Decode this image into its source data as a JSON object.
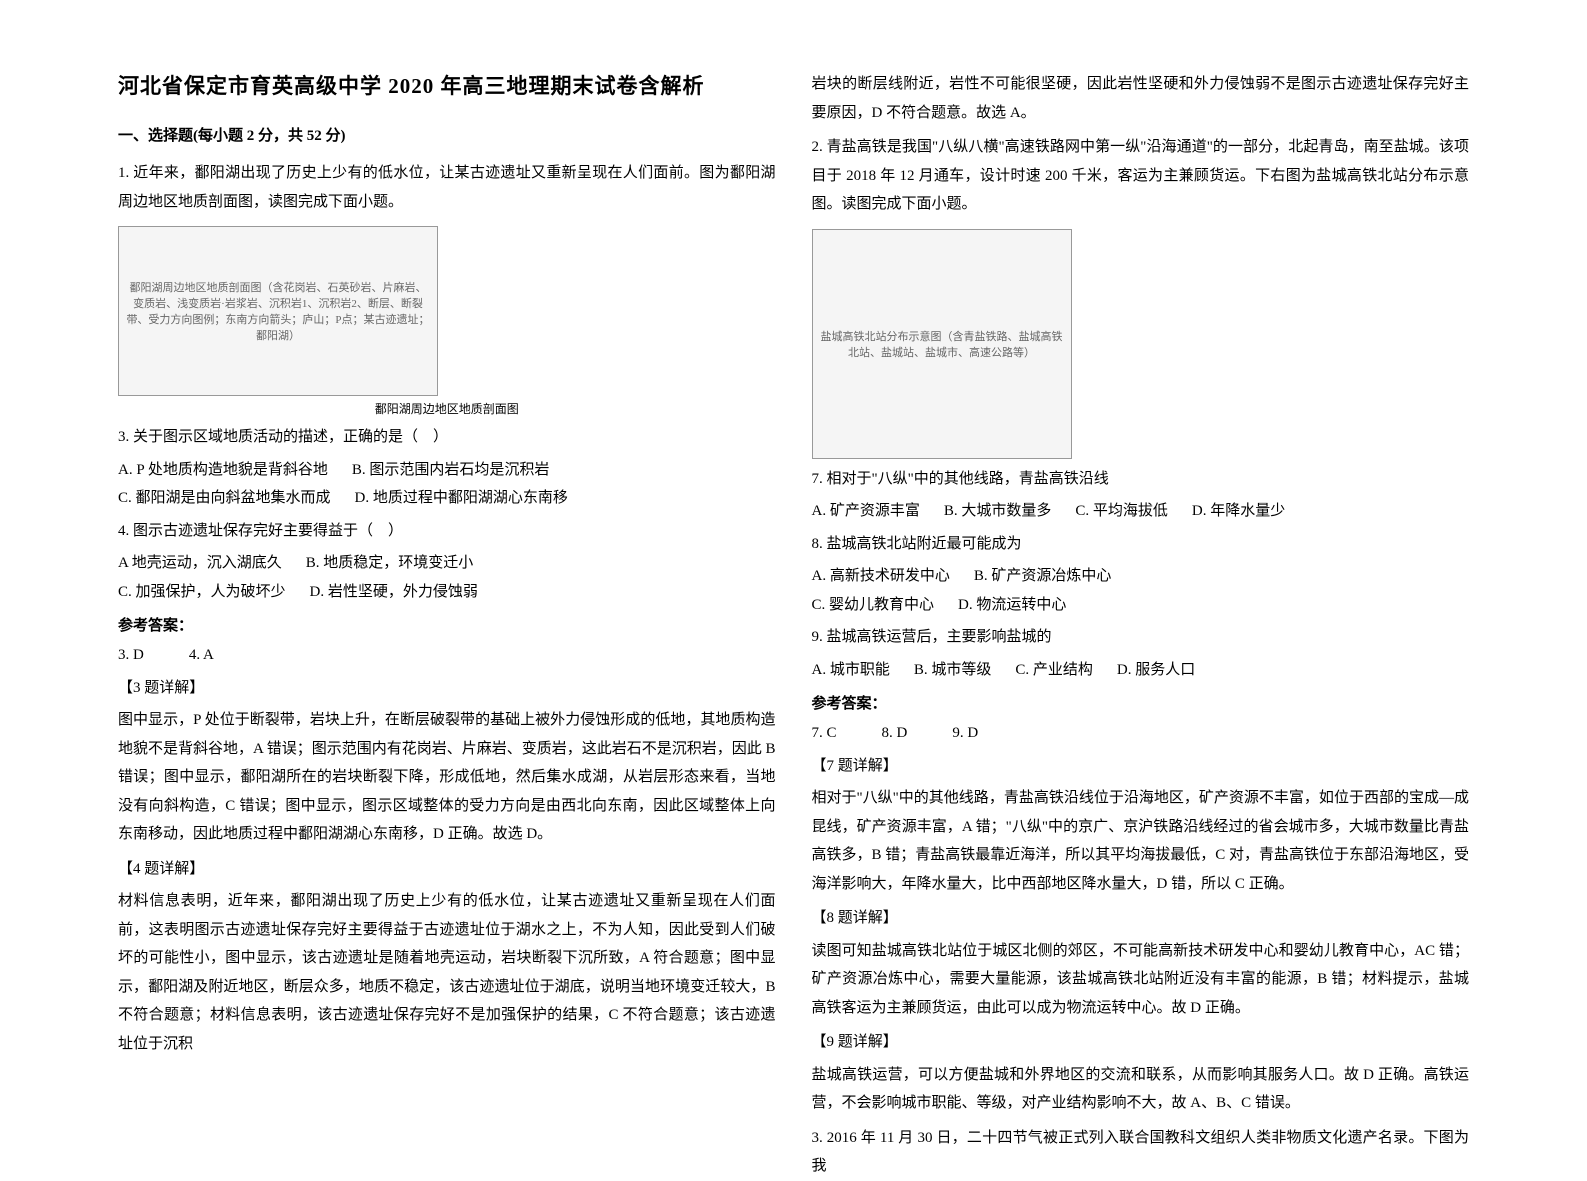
{
  "doc": {
    "title": "河北省保定市育英高级中学 2020 年高三地理期末试卷含解析",
    "section1_heading": "一、选择题(每小题 2 分，共 52 分)"
  },
  "q1": {
    "intro": "1. 近年来，鄱阳湖出现了历史上少有的低水位，让某古迹遗址又重新呈现在人们面前。图为鄱阳湖周边地区地质剖面图，读图完成下面小题。",
    "figure_desc": "鄱阳湖周边地区地质剖面图（含花岗岩、石英砂岩、片麻岩、变质岩、浅变质岩·岩浆岩、沉积岩1、沉积岩2、断层、断裂带、受力方向图例；东南方向箭头；庐山；P点；某古迹遗址；鄱阳湖）",
    "figure_caption": "鄱阳湖周边地区地质剖面图",
    "q3_stem": "3. 关于图示区域地质活动的描述，正确的是（　）",
    "q3_a": "A. P 处地质构造地貌是背斜谷地",
    "q3_b": "B. 图示范围内岩石均是沉积岩",
    "q3_c": "C. 鄱阳湖是由向斜盆地集水而成",
    "q3_d": "D. 地质过程中鄱阳湖湖心东南移",
    "q4_stem": "4. 图示古迹遗址保存完好主要得益于（　）",
    "q4_a": "A 地壳运动，沉入湖底久",
    "q4_b": "B. 地质稳定，环境变迁小",
    "q4_c": "C. 加强保护，人为破坏少",
    "q4_d": "D. 岩性坚硬，外力侵蚀弱",
    "answer_heading": "参考答案：",
    "answer_line": "3. D　　　4. A",
    "e3_heading": "【3 题详解】",
    "e3_body": "图中显示，P 处位于断裂带，岩块上升，在断层破裂带的基础上被外力侵蚀形成的低地，其地质构造地貌不是背斜谷地，A 错误；图示范围内有花岗岩、片麻岩、变质岩，这此岩石不是沉积岩，因此 B 错误；图中显示，鄱阳湖所在的岩块断裂下降，形成低地，然后集水成湖，从岩层形态来看，当地没有向斜构造，C 错误；图中显示，图示区域整体的受力方向是由西北向东南，因此区域整体上向东南移动，因此地质过程中鄱阳湖湖心东南移，D 正确。故选 D。",
    "e4_heading": "【4 题详解】",
    "e4_body": "材料信息表明，近年来，鄱阳湖出现了历史上少有的低水位，让某古迹遗址又重新呈现在人们面前，这表明图示古迹遗址保存完好主要得益于古迹遗址位于湖水之上，不为人知，因此受到人们破坏的可能性小，图中显示，该古迹遗址是随着地壳运动，岩块断裂下沉所致，A 符合题意；图中显示，鄱阳湖及附近地区，断层众多，地质不稳定，该古迹遗址位于湖底，说明当地环境变迁较大，B 不符合题意；材料信息表明，该古迹遗址保存完好不是加强保护的结果，C 不符合题意；该古迹遗址位于沉积",
    "e4_cont": "岩块的断层线附近，岩性不可能很坚硬，因此岩性坚硬和外力侵蚀弱不是图示古迹遗址保存完好主要原因，D 不符合题意。故选 A。"
  },
  "q2": {
    "intro": "2. 青盐高铁是我国\"八纵八横\"高速铁路网中第一纵\"沿海通道\"的一部分，北起青岛，南至盐城。该项目于 2018 年 12 月通车，设计时速 200 千米，客运为主兼顾货运。下右图为盐城高铁北站分布示意图。读图完成下面小题。",
    "figure_desc": "盐城高铁北站分布示意图（含青盐铁路、盐城高铁北站、盐城站、盐城市、高速公路等）",
    "q7_stem": "7. 相对于\"八纵\"中的其他线路，青盐高铁沿线",
    "q7_a": "A. 矿产资源丰富",
    "q7_b": "B. 大城市数量多",
    "q7_c": "C. 平均海拔低",
    "q7_d": "D. 年降水量少",
    "q8_stem": "8. 盐城高铁北站附近最可能成为",
    "q8_a": "A. 高新技术研发中心",
    "q8_b": "B. 矿产资源冶炼中心",
    "q8_c": "C. 婴幼儿教育中心",
    "q8_d": "D. 物流运转中心",
    "q9_stem": "9. 盐城高铁运营后，主要影响盐城的",
    "q9_a": "A. 城市职能",
    "q9_b": "B. 城市等级",
    "q9_c": "C. 产业结构",
    "q9_d": "D. 服务人口",
    "answer_heading": "参考答案：",
    "answer_line": "7. C　　　8. D　　　9. D",
    "e7_heading": "【7 题详解】",
    "e7_body": "相对于\"八纵\"中的其他线路，青盐高铁沿线位于沿海地区，矿产资源不丰富，如位于西部的宝成—成昆线，矿产资源丰富，A 错；\"八纵\"中的京广、京沪铁路沿线经过的省会城市多，大城市数量比青盐高铁多，B 错；青盐高铁最靠近海洋，所以其平均海拔最低，C 对，青盐高铁位于东部沿海地区，受海洋影响大，年降水量大，比中西部地区降水量大，D 错，所以 C 正确。",
    "e8_heading": "【8 题详解】",
    "e8_body": "读图可知盐城高铁北站位于城区北侧的郊区，不可能高新技术研发中心和婴幼儿教育中心，AC 错；矿产资源冶炼中心，需要大量能源，该盐城高铁北站附近没有丰富的能源，B 错；材料提示，盐城高铁客运为主兼顾货运，由此可以成为物流运转中心。故 D 正确。",
    "e9_heading": "【9 题详解】",
    "e9_body": "盐城高铁运营，可以方便盐城和外界地区的交流和联系，从而影响其服务人口。故 D 正确。高铁运营，不会影响城市职能、等级，对产业结构影响不大，故 A、B、C 错误。"
  },
  "q3_intro": "3. 2016 年 11 月 30 日，二十四节气被正式列入联合国教科文组织人类非物质文化遗产名录。下图为我"
}
